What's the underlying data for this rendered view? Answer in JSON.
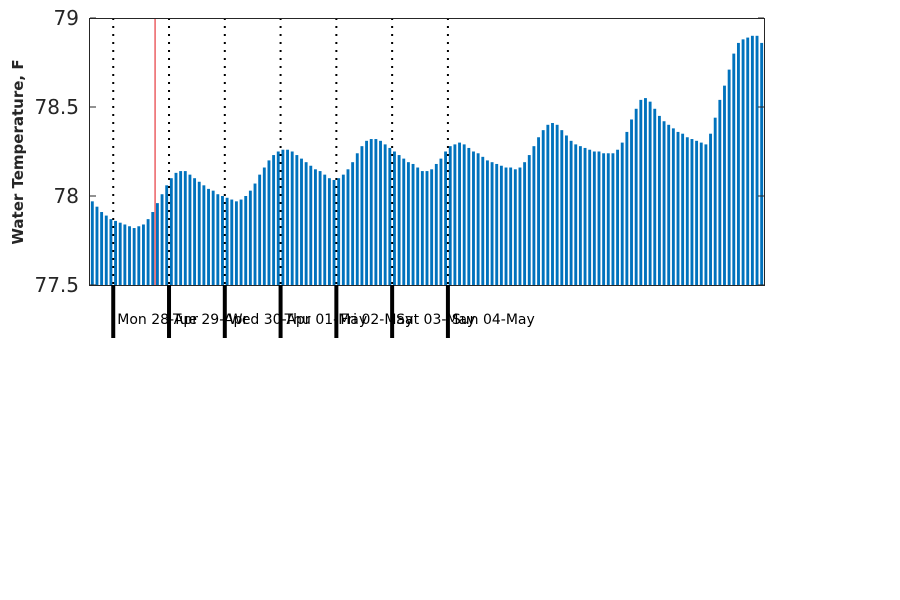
{
  "chart_data": {
    "type": "bar",
    "ylabel": "Water Temperature, F",
    "ylim": [
      77.5,
      79
    ],
    "yticks": [
      77.5,
      78,
      78.5,
      79
    ],
    "ytick_labels": [
      "77.5",
      "78",
      "78.5",
      "79"
    ],
    "bar_color": "#0072bd",
    "marker_color": "#e8474c",
    "interval_hours": 2,
    "x_start": "Sun 27-Apr 14:00",
    "marker_at": "Mon 28-Apr 18:00",
    "grid": "dotted vertical lines at midnight",
    "day_labels": [
      "Mon 28-Apr",
      "Tue 29-Apr",
      "Wed 30-Apr",
      "Thu 01-May",
      "Fri 02-May",
      "Sat 03-May",
      "Sun 04-May"
    ],
    "values": [
      77.97,
      77.94,
      77.91,
      77.89,
      77.87,
      77.86,
      77.85,
      77.84,
      77.83,
      77.82,
      77.83,
      77.84,
      77.87,
      77.91,
      77.96,
      78.01,
      78.06,
      78.1,
      78.13,
      78.14,
      78.14,
      78.12,
      78.1,
      78.08,
      78.06,
      78.04,
      78.03,
      78.01,
      78.0,
      77.99,
      77.98,
      77.97,
      77.98,
      78.0,
      78.03,
      78.07,
      78.12,
      78.16,
      78.2,
      78.23,
      78.25,
      78.26,
      78.26,
      78.25,
      78.23,
      78.21,
      78.19,
      78.17,
      78.15,
      78.14,
      78.12,
      78.1,
      78.09,
      78.1,
      78.12,
      78.15,
      78.19,
      78.24,
      78.28,
      78.31,
      78.32,
      78.32,
      78.31,
      78.29,
      78.27,
      78.25,
      78.23,
      78.21,
      78.19,
      78.18,
      78.16,
      78.14,
      78.14,
      78.15,
      78.18,
      78.21,
      78.25,
      78.28,
      78.29,
      78.3,
      78.29,
      78.27,
      78.25,
      78.24,
      78.22,
      78.2,
      78.19,
      78.18,
      78.17,
      78.16,
      78.16,
      78.15,
      78.16,
      78.19,
      78.23,
      78.28,
      78.33,
      78.37,
      78.4,
      78.41,
      78.4,
      78.37,
      78.34,
      78.31,
      78.29,
      78.28,
      78.27,
      78.26,
      78.25,
      78.25,
      78.24,
      78.24,
      78.24,
      78.26,
      78.3,
      78.36,
      78.43,
      78.49,
      78.54,
      78.55,
      78.53,
      78.49,
      78.45,
      78.42,
      78.4,
      78.38,
      78.36,
      78.35,
      78.33,
      78.32,
      78.31,
      78.3,
      78.29,
      78.35,
      78.44,
      78.54,
      78.62,
      78.71,
      78.8,
      78.86,
      78.88,
      78.89,
      78.9,
      78.9,
      78.86
    ]
  }
}
